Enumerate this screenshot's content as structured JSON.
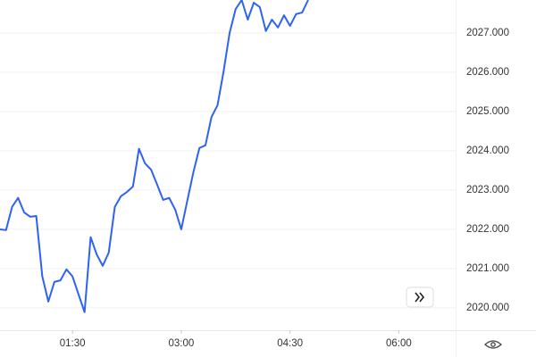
{
  "chart_data": {
    "type": "line",
    "x": [
      30,
      35,
      40,
      45,
      50,
      55,
      60,
      65,
      70,
      75,
      80,
      85,
      90,
      95,
      100,
      105,
      110,
      115,
      120,
      125,
      130,
      135,
      140,
      145,
      150,
      155,
      160,
      165,
      170,
      175,
      180,
      185,
      190,
      195,
      200,
      205,
      210,
      215,
      220,
      225,
      230,
      235,
      240,
      245,
      250,
      255,
      260,
      265,
      270,
      275,
      280,
      285
    ],
    "series": [
      {
        "color": "#2f62f4",
        "values": [
          2022.0,
          2021.98,
          2022.57,
          2022.8,
          2022.43,
          2022.32,
          2022.34,
          2020.8,
          2020.16,
          2020.66,
          2020.7,
          2020.98,
          2020.8,
          2020.34,
          2019.89,
          2021.8,
          2021.36,
          2021.07,
          2021.41,
          2022.57,
          2022.84,
          2022.95,
          2023.09,
          2024.05,
          2023.68,
          2023.52,
          2023.14,
          2022.75,
          2022.8,
          2022.5,
          2022.0,
          2022.73,
          2023.45,
          2024.07,
          2024.14,
          2024.86,
          2025.16,
          2026.02,
          2027.0,
          2027.61,
          2027.84,
          2027.34,
          2027.77,
          2027.66,
          2027.05,
          2027.34,
          2027.14,
          2027.45,
          2027.18,
          2027.48,
          2027.52,
          2027.84
        ]
      }
    ],
    "xlim": [
      30,
      407
    ],
    "xticks": [
      {
        "value": 90,
        "label": "01:30"
      },
      {
        "value": 180,
        "label": "03:00"
      },
      {
        "value": 270,
        "label": "04:30"
      },
      {
        "value": 360,
        "label": "06:00"
      }
    ],
    "ylim": [
      2019.43,
      2027.84
    ],
    "yticks": [
      {
        "value": 2020,
        "label": "2020.000"
      },
      {
        "value": 2021,
        "label": "2021.000"
      },
      {
        "value": 2022,
        "label": "2022.000"
      },
      {
        "value": 2023,
        "label": "2023.000"
      },
      {
        "value": 2024,
        "label": "2024.000"
      },
      {
        "value": 2025,
        "label": "2025.000"
      },
      {
        "value": 2026,
        "label": "2026.000"
      },
      {
        "value": 2027,
        "label": "2027.000"
      }
    ],
    "grid": true
  }
}
